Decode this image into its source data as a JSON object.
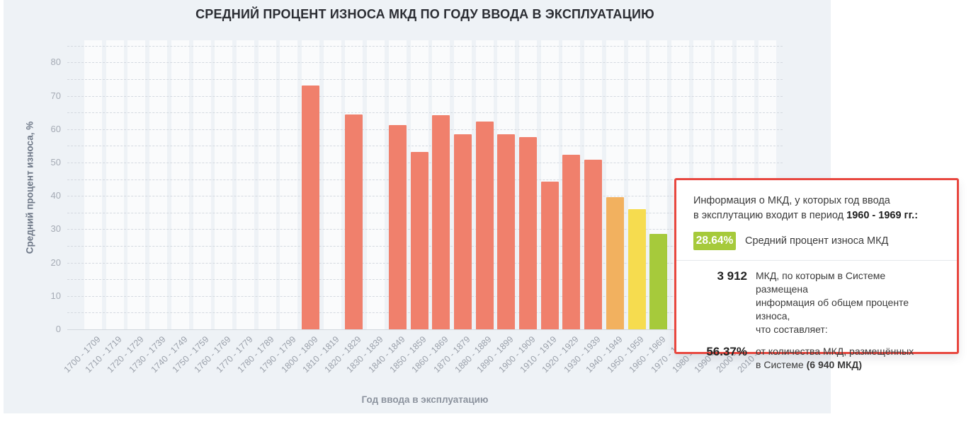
{
  "colors": {
    "panel_bg": "#eef2f6",
    "stripe": "#fafbfc",
    "bar_default": "#F0806C",
    "bar_orange": "#F2B15F",
    "bar_yellow": "#F6DC4F",
    "bar_green": "#A6CA3B",
    "badge_green": "#A6CA3B",
    "tooltip_border": "#E8473F"
  },
  "chart_data": {
    "type": "bar",
    "title": "СРЕДНИЙ ПРОЦЕНТ ИЗНОСА МКД ПО ГОДУ ВВОДА В ЭКСПЛУАТАЦИЮ",
    "xlabel": "Год ввода в эксплуатацию",
    "ylabel": "Средний процент износа, %",
    "ylim": [
      0,
      85
    ],
    "yticks": [
      0,
      10,
      20,
      30,
      40,
      50,
      60,
      70,
      80
    ],
    "grid": "dashed horizontal every 5, alternating vertical column stripes",
    "legend": "none",
    "categories": [
      "1700 - 1709",
      "1710 - 1719",
      "1720 - 1729",
      "1730 - 1739",
      "1740 - 1749",
      "1750 - 1759",
      "1760 - 1769",
      "1770 - 1779",
      "1780 - 1789",
      "1790 - 1799",
      "1800 - 1809",
      "1810 - 1819",
      "1820 - 1829",
      "1830 - 1839",
      "1840 - 1849",
      "1850 - 1859",
      "1860 - 1869",
      "1870 - 1879",
      "1880 - 1889",
      "1890 - 1899",
      "1900 - 1909",
      "1910 - 1919",
      "1920 - 1929",
      "1930 - 1939",
      "1940 - 1949",
      "1950 - 1959",
      "1960 - 1969",
      "1970 - 1979",
      "1980 - 1989",
      "1990 - 1999",
      "2000 - 2009",
      "2010 - 2019"
    ],
    "bars": [
      {
        "category": "1800 - 1809",
        "value": 73.2,
        "color": "#F0806C"
      },
      {
        "category": "1820 - 1829",
        "value": 64.5,
        "color": "#F0806C"
      },
      {
        "category": "1840 - 1849",
        "value": 61.3,
        "color": "#F0806C"
      },
      {
        "category": "1850 - 1859",
        "value": 53.2,
        "color": "#F0806C"
      },
      {
        "category": "1860 - 1869",
        "value": 64.1,
        "color": "#F0806C"
      },
      {
        "category": "1870 - 1879",
        "value": 58.4,
        "color": "#F0806C"
      },
      {
        "category": "1880 - 1889",
        "value": 62.2,
        "color": "#F0806C"
      },
      {
        "category": "1890 - 1899",
        "value": 58.5,
        "color": "#F0806C"
      },
      {
        "category": "1900 - 1909",
        "value": 57.7,
        "color": "#F0806C"
      },
      {
        "category": "1910 - 1919",
        "value": 44.2,
        "color": "#F0806C"
      },
      {
        "category": "1920 - 1929",
        "value": 52.4,
        "color": "#F0806C"
      },
      {
        "category": "1930 - 1939",
        "value": 50.9,
        "color": "#F0806C"
      },
      {
        "category": "1940 - 1949",
        "value": 39.6,
        "color": "#F2B15F"
      },
      {
        "category": "1950 - 1959",
        "value": 36.0,
        "color": "#F6DC4F"
      },
      {
        "category": "1960 - 1969",
        "value": 28.64,
        "color": "#A6CA3B"
      }
    ]
  },
  "tooltip": {
    "line1": "Информация о МКД, у которых год ввода",
    "line2_prefix": "в эксплутацию входит в период ",
    "period": "1960 - 1969 гг.:",
    "badge_value": "28.64%",
    "badge_label": "Средний процент износа МКД",
    "stat1_value": "3 912",
    "stat1_lines": [
      "МКД, по которым в Системе размещена",
      "информация об общем проценте износа,",
      "что составляет:"
    ],
    "stat2_value": "56.37%",
    "stat2_line1": "от количества МКД, размещённых",
    "stat2_line2_prefix": "в Системе ",
    "stat2_line2_bold": "(6 940 МКД)"
  }
}
